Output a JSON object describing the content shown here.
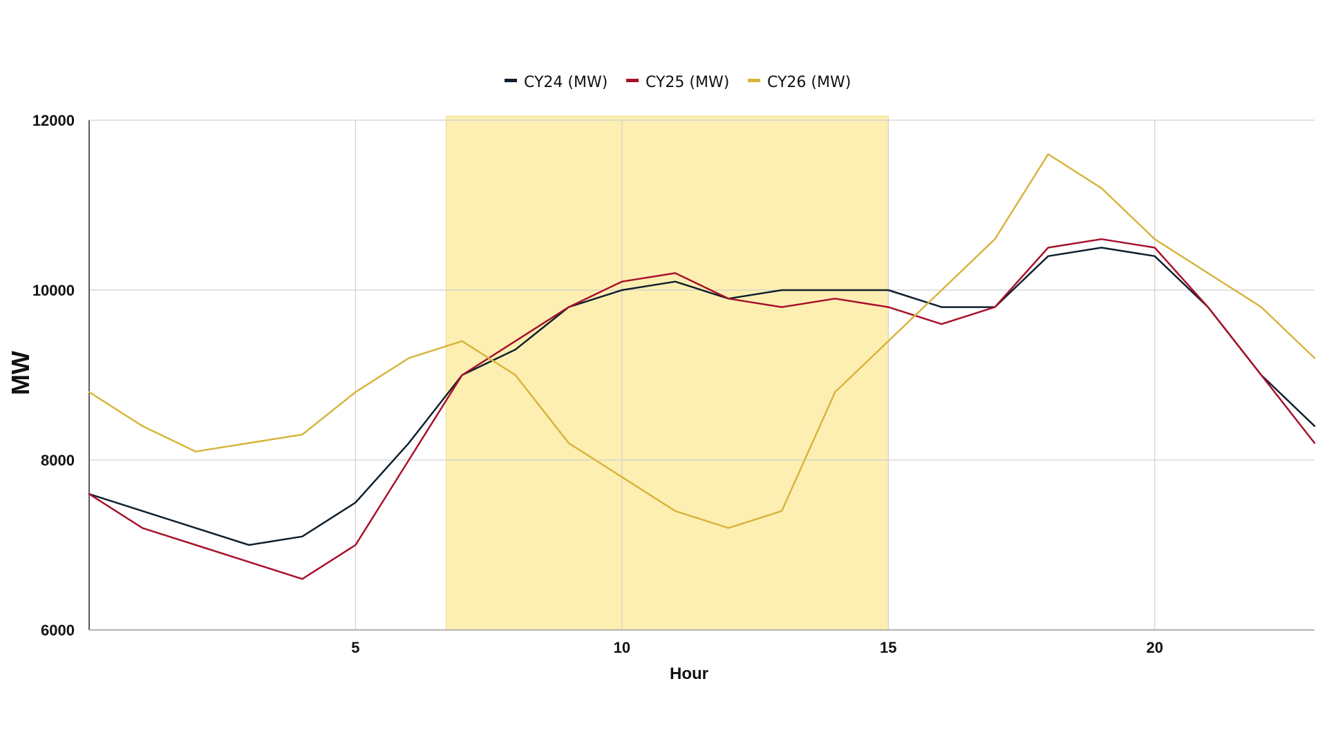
{
  "chart_data": {
    "type": "line",
    "title": "",
    "xlabel": "Hour",
    "ylabel": "MW",
    "x": [
      0,
      1,
      2,
      3,
      4,
      5,
      6,
      7,
      8,
      9,
      10,
      11,
      12,
      13,
      14,
      15,
      16,
      17,
      18,
      19,
      20,
      21,
      22,
      23
    ],
    "xlim": [
      0,
      23
    ],
    "ylim": [
      6000,
      12000
    ],
    "x_ticks": [
      5,
      10,
      15,
      20
    ],
    "y_ticks": [
      6000,
      8000,
      10000,
      12000
    ],
    "grid": true,
    "legend_position": "top-center",
    "highlight_band": {
      "x_start": 6.7,
      "x_end": 15,
      "color": "#fdefb2"
    },
    "series": [
      {
        "name": "CY24 (MW)",
        "color": "#0f1f2e",
        "values": [
          7600,
          7400,
          7200,
          7000,
          7100,
          7500,
          8200,
          9000,
          9300,
          9800,
          10000,
          10100,
          9900,
          10000,
          10000,
          10000,
          9800,
          9800,
          10400,
          10500,
          10400,
          9800,
          9000,
          8400
        ]
      },
      {
        "name": "CY25 (MW)",
        "color": "#a8102a",
        "values": [
          7600,
          7200,
          7000,
          6800,
          6600,
          7000,
          8000,
          9000,
          9400,
          9800,
          10100,
          10200,
          9900,
          9800,
          9900,
          9800,
          9600,
          9800,
          10500,
          10600,
          10500,
          9800,
          9000,
          8200
        ]
      },
      {
        "name": "CY26 (MW)",
        "color": "#d8b43c",
        "values": [
          8800,
          8400,
          8100,
          8200,
          8300,
          8800,
          9200,
          9400,
          9000,
          8200,
          7800,
          7400,
          7200,
          7400,
          8800,
          9400,
          10000,
          10600,
          11600,
          11200,
          10600,
          10200,
          9800,
          9200
        ]
      }
    ]
  }
}
